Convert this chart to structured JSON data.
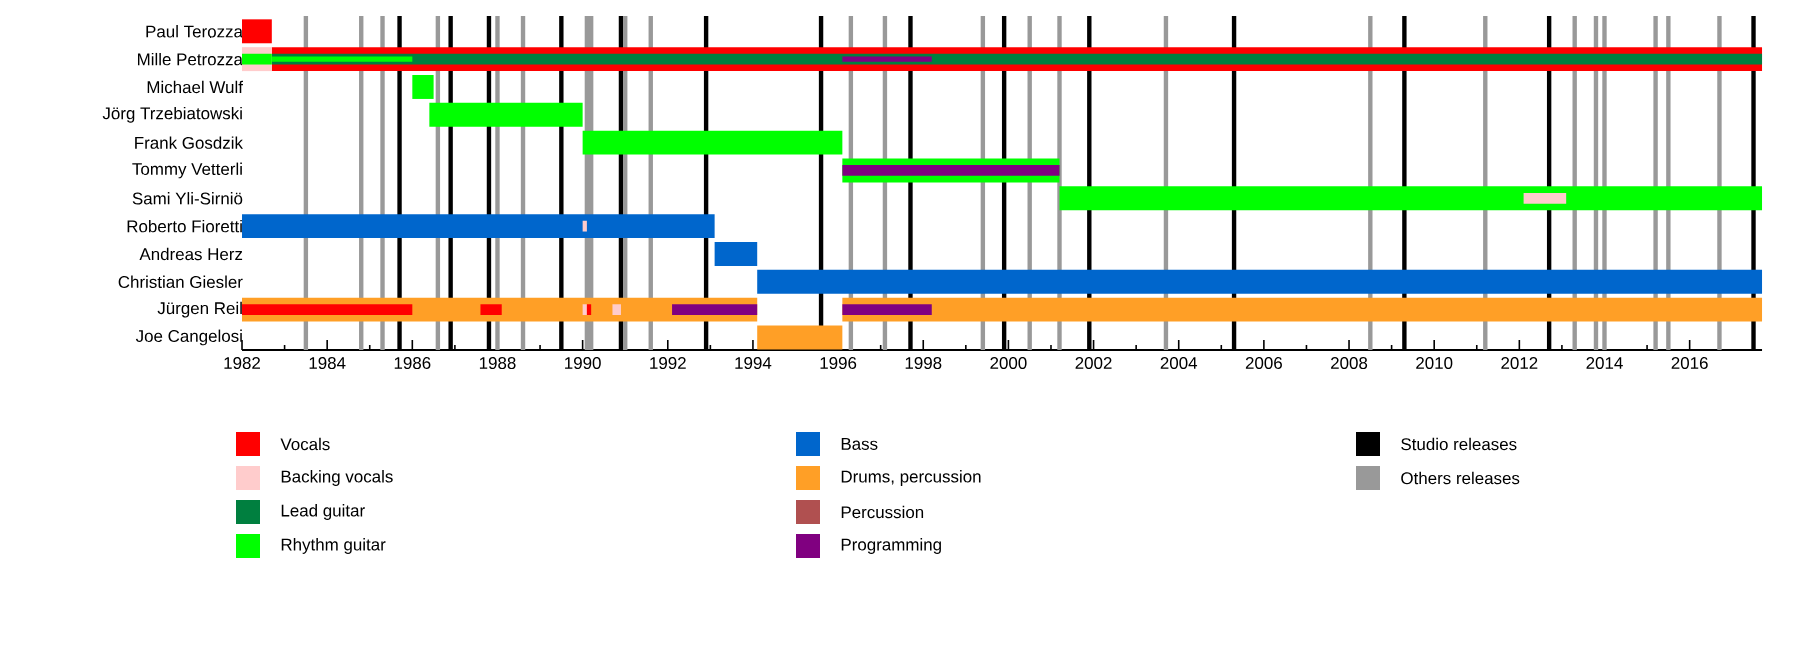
{
  "chart_data": {
    "type": "bar",
    "orientation": "horizontal",
    "legend": "bottom",
    "categories": [
      "Paul Terozza",
      "Mille Petrozza",
      "Michael Wulf",
      "Jörg Trzebiatowski",
      "Frank Gosdzik",
      "Tommy Vetterli",
      "Sami Yli-Sirniö",
      "Roberto Fioretti",
      "Andreas Herz",
      "Christian Giesler",
      "Jürgen Reil",
      "Joe Cangelosi"
    ],
    "xlim": [
      1982,
      2017.7
    ],
    "xticks": [
      1982,
      1984,
      1986,
      1988,
      1990,
      1992,
      1994,
      1996,
      1998,
      2000,
      2002,
      2004,
      2006,
      2008,
      2010,
      2012,
      2014,
      2016
    ],
    "series": [
      {
        "name": "Vocals",
        "color": "#ff0000",
        "base": [
          1982,
          1982.7,
          null,
          null,
          null,
          null,
          null,
          null,
          null,
          null,
          1982,
          null
        ],
        "values": [
          0.7,
          35.0,
          null,
          null,
          null,
          null,
          null,
          null,
          null,
          null,
          4.0,
          null
        ]
      },
      {
        "name": "Backing vocals",
        "color": "#ffcccc",
        "base": [
          null,
          1982,
          null,
          null,
          null,
          null,
          2012.1,
          1990.0,
          null,
          null,
          1990.0,
          null
        ],
        "values": [
          null,
          0.7,
          null,
          null,
          null,
          null,
          1.0,
          0.1,
          null,
          null,
          0.1,
          null
        ]
      },
      {
        "name": "Lead guitar",
        "color": "#007f3f",
        "base": [
          null,
          1982.7,
          null,
          null,
          null,
          null,
          null,
          null,
          null,
          null,
          null,
          null
        ],
        "values": [
          null,
          35.0,
          null,
          null,
          null,
          null,
          null,
          null,
          null,
          null,
          null,
          null
        ]
      },
      {
        "name": "Rhythm guitar",
        "color": "#00ff00",
        "base": [
          null,
          1982,
          1986.0,
          1986.4,
          1990.0,
          1996.1,
          2001.2,
          null,
          null,
          null,
          null,
          null
        ],
        "values": [
          null,
          0.7,
          0.5,
          3.6,
          6.1,
          5.1,
          16.5,
          null,
          null,
          null,
          null,
          null
        ]
      },
      {
        "name": "Bass",
        "color": "#0066cc",
        "base": [
          null,
          null,
          null,
          null,
          null,
          null,
          null,
          1982,
          1993.1,
          1994.1,
          null,
          null
        ],
        "values": [
          null,
          null,
          null,
          null,
          null,
          null,
          null,
          11.1,
          1.0,
          23.6,
          null,
          null
        ]
      },
      {
        "name": "Drums, percussion",
        "color": "#ff9f26",
        "base": [
          null,
          null,
          null,
          null,
          null,
          null,
          null,
          null,
          null,
          null,
          1982,
          1994.1
        ],
        "values": [
          null,
          null,
          null,
          null,
          null,
          null,
          null,
          null,
          null,
          null,
          12.1,
          2.0
        ]
      },
      {
        "name": "Percussion",
        "color": "#b05050",
        "base": [
          null,
          null,
          null,
          null,
          null,
          null,
          null,
          null,
          null,
          null,
          null,
          null
        ],
        "values": [
          null,
          null,
          null,
          null,
          null,
          null,
          null,
          null,
          null,
          null,
          null,
          null
        ]
      },
      {
        "name": "Programming",
        "color": "#800080",
        "base": [
          null,
          1996.1,
          null,
          null,
          null,
          1996.1,
          null,
          null,
          null,
          null,
          1992.1,
          null
        ],
        "values": [
          null,
          2.1,
          null,
          null,
          null,
          5.1,
          null,
          null,
          null,
          null,
          2.0,
          null
        ]
      },
      {
        "color": "#00ff00",
        "base": [
          null,
          1982.7,
          null,
          null,
          null,
          null,
          null,
          null,
          null,
          null,
          null,
          null
        ],
        "values": [
          null,
          3.3,
          null,
          null,
          null,
          null,
          null,
          null,
          null,
          null,
          null,
          null
        ]
      },
      {
        "color": "#ff9f26",
        "base": [
          null,
          null,
          null,
          null,
          null,
          null,
          null,
          null,
          null,
          null,
          1996.1,
          null
        ],
        "values": [
          null,
          null,
          null,
          null,
          null,
          null,
          null,
          null,
          null,
          null,
          21.6,
          null
        ]
      },
      {
        "color": "#ffcccc",
        "base": [
          null,
          null,
          null,
          null,
          null,
          null,
          null,
          null,
          null,
          null,
          1990.7,
          null
        ],
        "values": [
          null,
          null,
          null,
          null,
          null,
          null,
          null,
          null,
          null,
          null,
          0.2,
          null
        ]
      },
      {
        "color": "#ff0000",
        "base": [
          null,
          null,
          null,
          null,
          null,
          null,
          null,
          null,
          null,
          null,
          1987.6,
          null
        ],
        "values": [
          null,
          null,
          null,
          null,
          null,
          null,
          null,
          null,
          null,
          null,
          0.5,
          null
        ]
      },
      {
        "color": "#ff0000",
        "base": [
          null,
          null,
          null,
          null,
          null,
          null,
          null,
          null,
          null,
          null,
          1990.1,
          null
        ],
        "values": [
          null,
          null,
          null,
          null,
          null,
          null,
          null,
          null,
          null,
          null,
          0.1,
          null
        ]
      },
      {
        "color": "#800080",
        "base": [
          null,
          null,
          null,
          null,
          null,
          null,
          null,
          null,
          null,
          null,
          1996.1,
          null
        ],
        "values": [
          null,
          null,
          null,
          null,
          null,
          null,
          null,
          null,
          null,
          null,
          2.1,
          null
        ]
      }
    ],
    "ref_lines": [
      {
        "axis": "x",
        "value": 1985.7,
        "label": "Studio releases",
        "color": "#000000"
      },
      {
        "axis": "x",
        "value": 1986.9,
        "color": "#000000"
      },
      {
        "axis": "x",
        "value": 1987.8,
        "color": "#000000"
      },
      {
        "axis": "x",
        "value": 1989.5,
        "color": "#000000"
      },
      {
        "axis": "x",
        "value": 1990.9,
        "color": "#000000"
      },
      {
        "axis": "x",
        "value": 1992.9,
        "color": "#000000"
      },
      {
        "axis": "x",
        "value": 1995.6,
        "color": "#000000"
      },
      {
        "axis": "x",
        "value": 1997.7,
        "color": "#000000"
      },
      {
        "axis": "x",
        "value": 1999.9,
        "color": "#000000"
      },
      {
        "axis": "x",
        "value": 2001.9,
        "color": "#000000"
      },
      {
        "axis": "x",
        "value": 2005.3,
        "color": "#000000"
      },
      {
        "axis": "x",
        "value": 2009.3,
        "color": "#000000"
      },
      {
        "axis": "x",
        "value": 2012.7,
        "color": "#000000"
      },
      {
        "axis": "x",
        "value": 2017.5,
        "color": "#000000"
      },
      {
        "axis": "x",
        "value": 1983.5,
        "label": "Others releases",
        "color": "#999999"
      },
      {
        "axis": "x",
        "value": 1984.8,
        "color": "#999999"
      },
      {
        "axis": "x",
        "value": 1985.3,
        "color": "#999999"
      },
      {
        "axis": "x",
        "value": 1986.6,
        "color": "#999999"
      },
      {
        "axis": "x",
        "value": 1988.0,
        "color": "#999999"
      },
      {
        "axis": "x",
        "value": 1988.6,
        "color": "#999999"
      },
      {
        "axis": "x",
        "value": 1990.1,
        "color": "#999999"
      },
      {
        "axis": "x",
        "value": 1990.2,
        "color": "#999999"
      },
      {
        "axis": "x",
        "value": 1991.0,
        "color": "#999999"
      },
      {
        "axis": "x",
        "value": 1991.6,
        "color": "#999999"
      },
      {
        "axis": "x",
        "value": 1996.3,
        "color": "#999999"
      },
      {
        "axis": "x",
        "value": 1997.1,
        "color": "#999999"
      },
      {
        "axis": "x",
        "value": 1999.4,
        "color": "#999999"
      },
      {
        "axis": "x",
        "value": 2000.5,
        "color": "#999999"
      },
      {
        "axis": "x",
        "value": 2001.2,
        "color": "#999999"
      },
      {
        "axis": "x",
        "value": 2003.7,
        "color": "#999999"
      },
      {
        "axis": "x",
        "value": 2008.5,
        "color": "#999999"
      },
      {
        "axis": "x",
        "value": 2011.2,
        "color": "#999999"
      },
      {
        "axis": "x",
        "value": 2013.3,
        "color": "#999999"
      },
      {
        "axis": "x",
        "value": 2013.8,
        "color": "#999999"
      },
      {
        "axis": "x",
        "value": 2014.0,
        "color": "#999999"
      },
      {
        "axis": "x",
        "value": 2015.2,
        "color": "#999999"
      },
      {
        "axis": "x",
        "value": 2015.5,
        "color": "#999999"
      },
      {
        "axis": "x",
        "value": 2016.7,
        "color": "#999999"
      }
    ]
  }
}
